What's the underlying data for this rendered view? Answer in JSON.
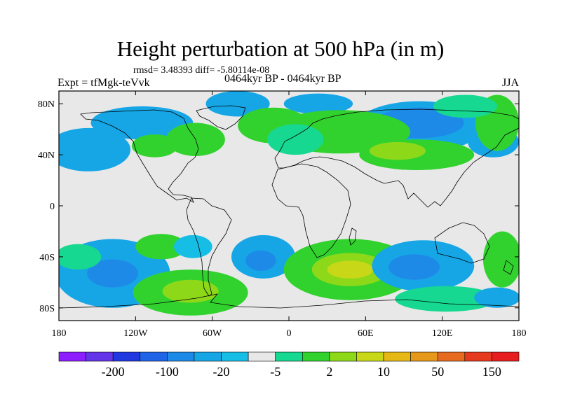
{
  "title": "Height perturbation at 500 hPa (in m)",
  "stats": "rmsd= 3.48393 diff= -5.80114e-08",
  "experiment": "Expt = tfMgk-teVvk",
  "period": "0464kyr BP - 0464kyr BP",
  "season": "JJA",
  "map": {
    "projection": "cylindrical-equidistant",
    "lon_range": [
      -180,
      180
    ],
    "lat_range": [
      -90,
      90
    ],
    "lat_ticks": [
      {
        "lat": 80,
        "label": "80N"
      },
      {
        "lat": 40,
        "label": "40N"
      },
      {
        "lat": 0,
        "label": "0"
      },
      {
        "lat": -40,
        "label": "40S"
      },
      {
        "lat": -80,
        "label": "80S"
      }
    ],
    "lon_ticks": [
      {
        "lon": -180,
        "label": "180"
      },
      {
        "lon": -120,
        "label": "120W"
      },
      {
        "lon": -60,
        "label": "60W"
      },
      {
        "lon": 0,
        "label": "0"
      },
      {
        "lon": 60,
        "label": "60E"
      },
      {
        "lon": 120,
        "label": "120E"
      },
      {
        "lon": 180,
        "label": "180"
      }
    ],
    "background_color": "#e8e8e8",
    "anomalies": [
      {
        "lon": -157,
        "lat": 44,
        "rlon": 33,
        "rlat": 17,
        "level": -2
      },
      {
        "lon": -115,
        "lat": 65,
        "rlon": 40,
        "rlat": 13,
        "level": -2
      },
      {
        "lon": -40,
        "lat": 80,
        "rlon": 25,
        "rlat": 10,
        "level": -2
      },
      {
        "lon": 23,
        "lat": 80,
        "rlon": 27,
        "rlat": 8,
        "level": -2
      },
      {
        "lon": 102,
        "lat": 62,
        "rlon": 50,
        "rlat": 20,
        "level": -2
      },
      {
        "lon": 102,
        "lat": 65,
        "rlon": 35,
        "rlat": 12,
        "level": -3
      },
      {
        "lon": 160,
        "lat": 50,
        "rlon": 20,
        "rlat": 12,
        "level": -2
      },
      {
        "lon": 40,
        "lat": 58,
        "rlon": 55,
        "rlat": 17,
        "level": 2
      },
      {
        "lon": -12,
        "lat": 63,
        "rlon": 28,
        "rlat": 14,
        "level": 2
      },
      {
        "lon": -73,
        "lat": 52,
        "rlon": 23,
        "rlat": 13,
        "level": 2
      },
      {
        "lon": -105,
        "lat": 47,
        "rlon": 18,
        "rlat": 9,
        "level": 2
      },
      {
        "lon": 100,
        "lat": 40,
        "rlon": 45,
        "rlat": 12,
        "level": 2
      },
      {
        "lon": 85,
        "lat": 43,
        "rlon": 22,
        "rlat": 7,
        "level": 3
      },
      {
        "lon": 163,
        "lat": 65,
        "rlon": 17,
        "rlat": 22,
        "level": 2
      },
      {
        "lon": 5,
        "lat": 52,
        "rlon": 22,
        "rlat": 12,
        "level": 1
      },
      {
        "lon": 138,
        "lat": 78,
        "rlon": 25,
        "rlat": 9,
        "level": 1
      },
      {
        "lon": -138,
        "lat": -53,
        "rlon": 45,
        "rlat": 27,
        "level": -2
      },
      {
        "lon": -138,
        "lat": -53,
        "rlon": 20,
        "rlat": 11,
        "level": -3
      },
      {
        "lon": -165,
        "lat": -40,
        "rlon": 18,
        "rlat": 10,
        "level": 1
      },
      {
        "lon": -100,
        "lat": -32,
        "rlon": 20,
        "rlat": 10,
        "level": 2
      },
      {
        "lon": -77,
        "lat": -68,
        "rlon": 45,
        "rlat": 18,
        "level": 2
      },
      {
        "lon": -77,
        "lat": -67,
        "rlon": 22,
        "rlat": 9,
        "level": 3
      },
      {
        "lon": -75,
        "lat": -32,
        "rlon": 15,
        "rlat": 9,
        "level": -1
      },
      {
        "lon": -20,
        "lat": -40,
        "rlon": 25,
        "rlat": 17,
        "level": -2
      },
      {
        "lon": -22,
        "lat": -43,
        "rlon": 12,
        "rlat": 8,
        "level": -3
      },
      {
        "lon": 48,
        "lat": -50,
        "rlon": 52,
        "rlat": 24,
        "level": 2
      },
      {
        "lon": 48,
        "lat": -50,
        "rlon": 30,
        "rlat": 13,
        "level": 3
      },
      {
        "lon": 48,
        "lat": -50,
        "rlon": 18,
        "rlat": 7,
        "level": 4
      },
      {
        "lon": 105,
        "lat": -47,
        "rlon": 40,
        "rlat": 20,
        "level": -2
      },
      {
        "lon": 98,
        "lat": -48,
        "rlon": 20,
        "rlat": 10,
        "level": -3
      },
      {
        "lon": 123,
        "lat": -73,
        "rlon": 40,
        "rlat": 10,
        "level": 1
      },
      {
        "lon": 167,
        "lat": -42,
        "rlon": 15,
        "rlat": 22,
        "level": 2
      },
      {
        "lon": 163,
        "lat": -72,
        "rlon": 18,
        "rlat": 8,
        "level": -2
      }
    ]
  },
  "colorbar": {
    "colors": [
      "#8c1eff",
      "#6434e8",
      "#2038e0",
      "#1f64e6",
      "#1e8ae8",
      "#16a6e6",
      "#16bee6",
      "#e8e8e8",
      "#16d890",
      "#32d22e",
      "#8ed81a",
      "#c8d818",
      "#e6b816",
      "#e6981a",
      "#e66a20",
      "#e63a20",
      "#e61e20"
    ],
    "labels": [
      {
        "index": 1,
        "text": "-200"
      },
      {
        "index": 3,
        "text": "-100"
      },
      {
        "index": 5,
        "text": "-20"
      },
      {
        "index": 7,
        "text": "-5"
      },
      {
        "index": 9,
        "text": "2"
      },
      {
        "index": 11,
        "text": "10"
      },
      {
        "index": 13,
        "text": "50"
      },
      {
        "index": 15,
        "text": "150"
      }
    ]
  }
}
